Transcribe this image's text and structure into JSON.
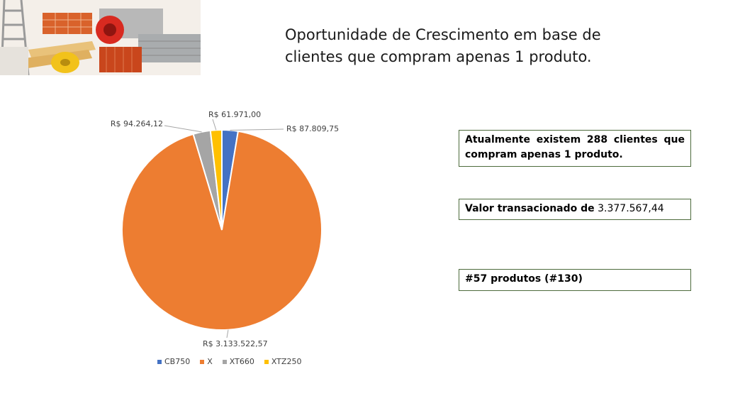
{
  "header": {
    "title_line1": "Oportunidade de Crescimento em base de",
    "title_line2": "clientes que compram apenas 1 produto."
  },
  "chart_data": {
    "type": "pie",
    "title": "",
    "series": [
      {
        "category": "CB750",
        "value": 87809.75,
        "label": "R$ 87.809,75",
        "color": "#4472C4"
      },
      {
        "category": "X",
        "value": 3133522.57,
        "label": "R$ 3.133.522,57",
        "color": "#ED7D31"
      },
      {
        "category": "XT660",
        "value": 94264.12,
        "label": "R$ 94.264,12",
        "color": "#A5A5A5"
      },
      {
        "category": "XTZ250",
        "value": 61971.0,
        "label": "R$ 61.971,00",
        "color": "#FFC000"
      }
    ],
    "legend_position": "bottom"
  },
  "info": {
    "box1": "Atualmente existem 288 clientes que compram apenas 1 produto.",
    "box2_label": "Valor transacionado de",
    "box2_value": "3.377.567,44",
    "box3": "#57 produtos (#130)"
  }
}
